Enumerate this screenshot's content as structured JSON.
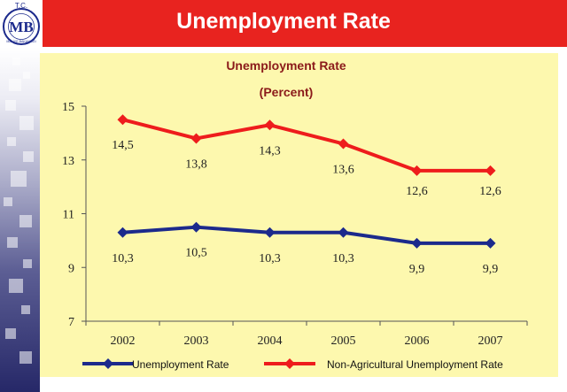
{
  "banner": {
    "title": "Unemployment Rate"
  },
  "logo": {
    "top_text": "T.C.",
    "monogram": "MB",
    "ring_text": "MALİYE BAKANLIĞI"
  },
  "colors": {
    "banner": "#e8231f",
    "series_total": "#1c2a8c",
    "series_nonagri": "#ee1c1c",
    "panel": "#fdf8ae"
  },
  "chart_data": {
    "type": "line",
    "title": "Unemployment Rate",
    "subtitle": "(Percent)",
    "x": [
      "2002",
      "2003",
      "2004",
      "2005",
      "2006",
      "2007"
    ],
    "ylim": [
      7,
      15
    ],
    "yticks": [
      "7",
      "9",
      "11",
      "13",
      "15"
    ],
    "grid": false,
    "legend_position": "bottom",
    "series": [
      {
        "name": "Unemployment Rate",
        "color": "#1c2a8c",
        "values": [
          10.3,
          10.5,
          10.3,
          10.3,
          9.9,
          9.9
        ],
        "labels": [
          "10,3",
          "10,5",
          "10,3",
          "10,3",
          "9,9",
          "9,9"
        ]
      },
      {
        "name": "Non-Agricultural Unemployment Rate",
        "color": "#ee1c1c",
        "values": [
          14.5,
          13.8,
          14.3,
          13.6,
          12.6,
          12.6
        ],
        "labels": [
          "14,5",
          "13,8",
          "14,3",
          "13,6",
          "12,6",
          "12,6"
        ]
      }
    ]
  }
}
